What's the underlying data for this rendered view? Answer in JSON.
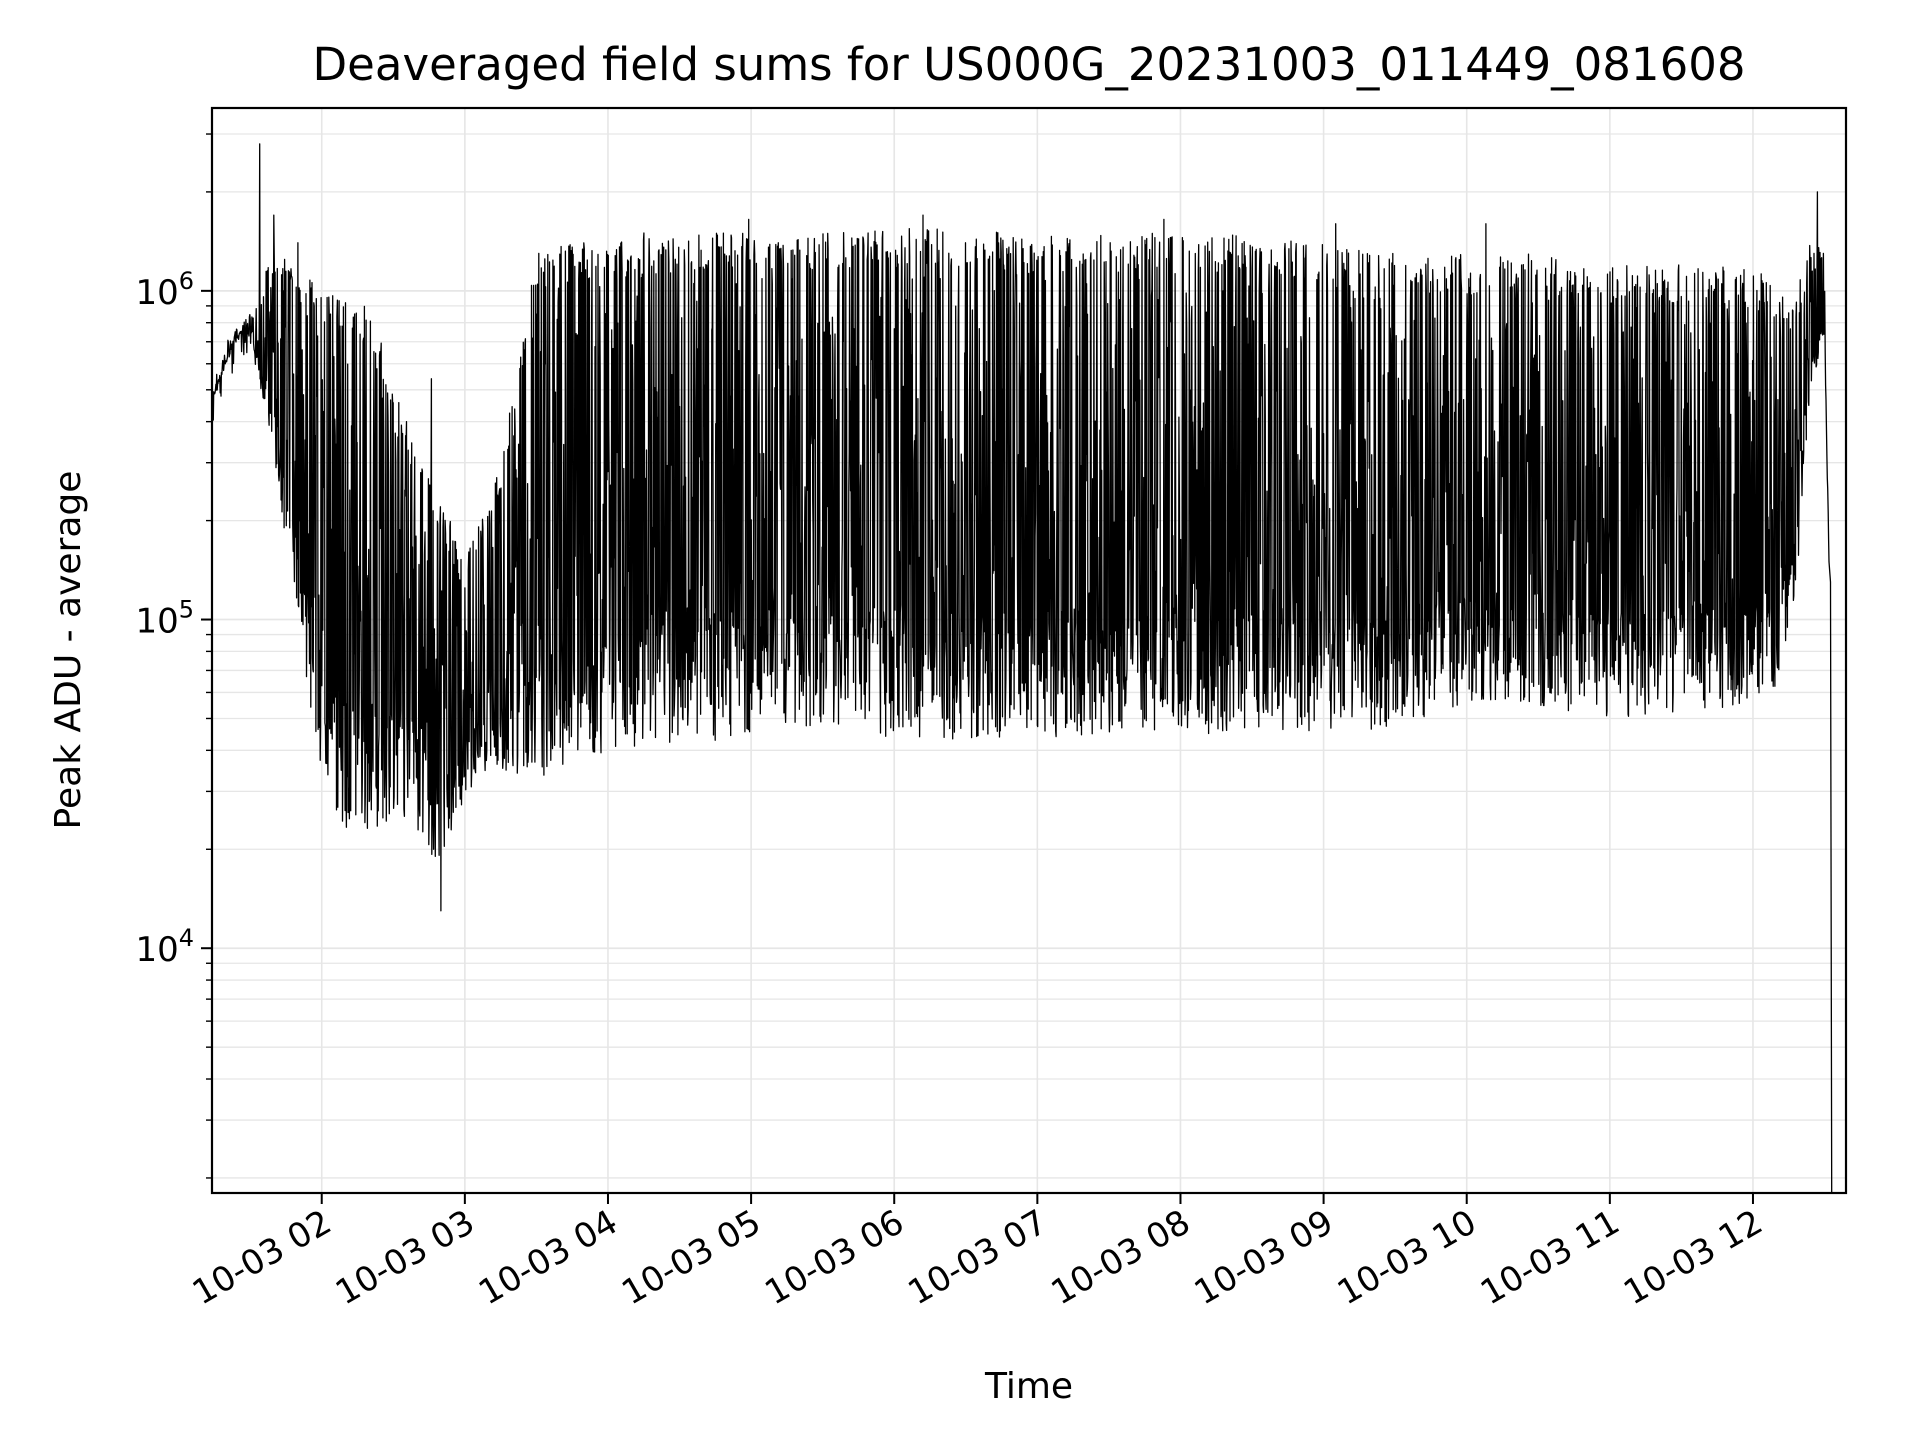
{
  "chart_data": {
    "type": "line",
    "title": "Deaveraged field sums for US000G_20231003_011449_081608",
    "xlabel": "Time",
    "ylabel": "Peak ADU - average",
    "y_scale": "log",
    "ylim": [
      1800,
      3600000
    ],
    "xlim": [
      "2023-10-03 01:14",
      "2023-10-03 12:39"
    ],
    "grid": true,
    "line_color": "#000000",
    "grid_color": "#e6e6e6",
    "x_ticks": [
      {
        "value": "2023-10-03 02:00",
        "label": "10-03 02"
      },
      {
        "value": "2023-10-03 03:00",
        "label": "10-03 03"
      },
      {
        "value": "2023-10-03 04:00",
        "label": "10-03 04"
      },
      {
        "value": "2023-10-03 05:00",
        "label": "10-03 05"
      },
      {
        "value": "2023-10-03 06:00",
        "label": "10-03 06"
      },
      {
        "value": "2023-10-03 07:00",
        "label": "10-03 07"
      },
      {
        "value": "2023-10-03 08:00",
        "label": "10-03 08"
      },
      {
        "value": "2023-10-03 09:00",
        "label": "10-03 09"
      },
      {
        "value": "2023-10-03 10:00",
        "label": "10-03 10"
      },
      {
        "value": "2023-10-03 11:00",
        "label": "10-03 11"
      },
      {
        "value": "2023-10-03 12:00",
        "label": "10-03 12"
      }
    ],
    "y_ticks": [
      {
        "value": 10000,
        "base": "10",
        "exp": "4"
      },
      {
        "value": 100000,
        "base": "10",
        "exp": "5"
      },
      {
        "value": 1000000,
        "base": "10",
        "exp": "6"
      }
    ],
    "series": [
      {
        "x": [
          "2023-10-03 01:14",
          "2023-10-03 01:20",
          "2023-10-03 01:26",
          "2023-10-03 01:30",
          "2023-10-03 01:36",
          "2023-10-03 01:42",
          "2023-10-03 01:48",
          "2023-10-03 01:54",
          "2023-10-03 02:00",
          "2023-10-03 02:06",
          "2023-10-03 02:12",
          "2023-10-03 02:18",
          "2023-10-03 02:24",
          "2023-10-03 02:30",
          "2023-10-03 02:36",
          "2023-10-03 02:42",
          "2023-10-03 02:48",
          "2023-10-03 02:54",
          "2023-10-03 03:00",
          "2023-10-03 03:15",
          "2023-10-03 03:30",
          "2023-10-03 03:45",
          "2023-10-03 04:00",
          "2023-10-03 04:20",
          "2023-10-03 04:40",
          "2023-10-03 05:00",
          "2023-10-03 05:30",
          "2023-10-03 06:00",
          "2023-10-03 06:30",
          "2023-10-03 07:00",
          "2023-10-03 07:30",
          "2023-10-03 08:00",
          "2023-10-03 08:30",
          "2023-10-03 09:00",
          "2023-10-03 09:30",
          "2023-10-03 10:00",
          "2023-10-03 10:30",
          "2023-10-03 11:00",
          "2023-10-03 11:30",
          "2023-10-03 12:00",
          "2023-10-03 12:10",
          "2023-10-03 12:18",
          "2023-10-03 12:24",
          "2023-10-03 12:30",
          "2023-10-03 12:32",
          "2023-10-03 12:33"
        ],
        "low": [
          460000,
          600000,
          750000,
          700000,
          450000,
          250000,
          120000,
          60000,
          35000,
          26000,
          22000,
          22000,
          23000,
          25000,
          25000,
          22000,
          18000,
          20000,
          30000,
          35000,
          33000,
          36000,
          40000,
          42000,
          42000,
          44000,
          45000,
          44000,
          43000,
          44000,
          44000,
          45000,
          45000,
          45000,
          47000,
          56000,
          55000,
          50000,
          52000,
          55000,
          60000,
          120000,
          500000,
          700000,
          130000,
          1800
        ],
        "high": [
          500000,
          700000,
          800000,
          850000,
          1200000,
          1300000,
          1200000,
          1100000,
          1000000,
          1000000,
          950000,
          900000,
          800000,
          500000,
          400000,
          300000,
          250000,
          200000,
          150000,
          300000,
          1300000,
          1400000,
          1400000,
          1450000,
          1500000,
          1500000,
          1500000,
          1550000,
          1550000,
          1500000,
          1500000,
          1500000,
          1500000,
          1400000,
          1300000,
          1300000,
          1300000,
          1200000,
          1200000,
          1200000,
          1000000,
          1000000,
          1400000,
          1400000,
          130000,
          1800
        ],
        "spikes": [
          {
            "x": "2023-10-03 01:34",
            "y": 2800000
          },
          {
            "x": "2023-10-03 01:40",
            "y": 1700000
          },
          {
            "x": "2023-10-03 01:50",
            "y": 1400000
          },
          {
            "x": "2023-10-03 02:46",
            "y": 540000
          },
          {
            "x": "2023-10-03 02:50",
            "y": 13000
          },
          {
            "x": "2023-10-03 03:31",
            "y": 1300000
          },
          {
            "x": "2023-10-03 04:15",
            "y": 1500000
          },
          {
            "x": "2023-10-03 04:59",
            "y": 1650000
          },
          {
            "x": "2023-10-03 06:12",
            "y": 1700000
          },
          {
            "x": "2023-10-03 07:53",
            "y": 1650000
          },
          {
            "x": "2023-10-03 09:05",
            "y": 1600000
          },
          {
            "x": "2023-10-03 10:08",
            "y": 1600000
          },
          {
            "x": "2023-10-03 12:27",
            "y": 2000000
          }
        ]
      }
    ]
  }
}
